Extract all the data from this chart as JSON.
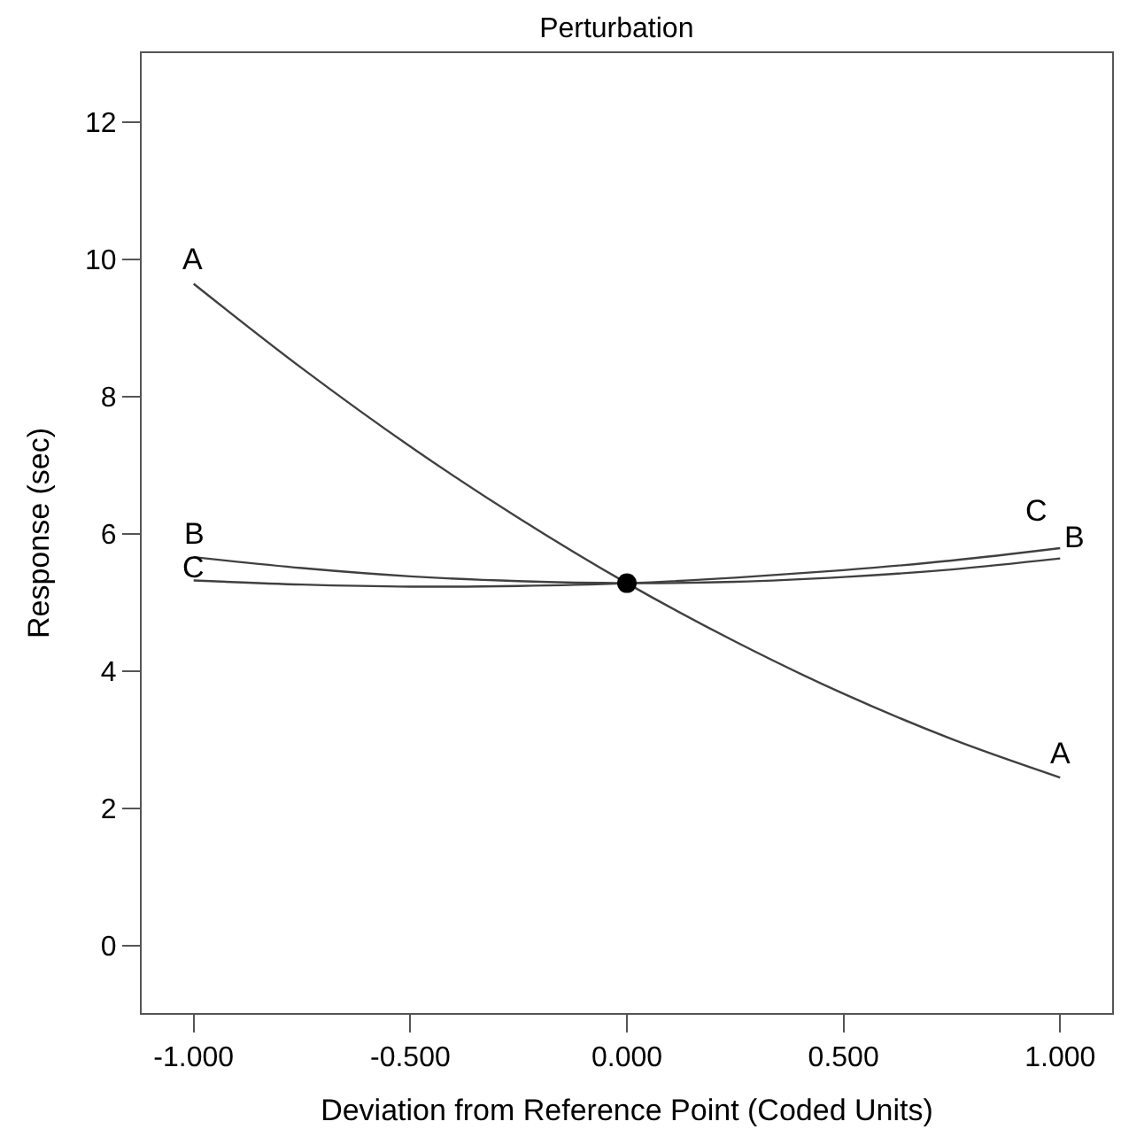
{
  "chart_data": {
    "type": "line",
    "title": "Perturbation",
    "xlabel": "Deviation from Reference Point (Coded Units)",
    "ylabel": "Response (sec)",
    "x": [
      -1,
      -0.75,
      -0.5,
      -0.25,
      0,
      0.25,
      0.5,
      0.75,
      1
    ],
    "series": [
      {
        "name": "A",
        "color": "#404040",
        "values": [
          9.64,
          8.41,
          7.27,
          6.23,
          5.28,
          4.43,
          3.67,
          3.01,
          2.45
        ]
      },
      {
        "name": "B",
        "color": "#404040",
        "values": [
          5.66,
          5.5,
          5.38,
          5.31,
          5.28,
          5.3,
          5.37,
          5.48,
          5.64
        ]
      },
      {
        "name": "C",
        "color": "#404040",
        "values": [
          5.32,
          5.26,
          5.23,
          5.24,
          5.28,
          5.36,
          5.47,
          5.61,
          5.79
        ]
      },
      {
        "type": "scatter",
        "x": [
          0
        ],
        "values": [
          5.28
        ],
        "color": "#000000",
        "marker": "circle"
      }
    ],
    "xlim": [
      -1.12,
      1.12
    ],
    "ylim": [
      -0.98,
      13.0
    ],
    "xticks": [
      {
        "value": -1,
        "label": "-1.000"
      },
      {
        "value": -0.5,
        "label": "-0.500"
      },
      {
        "value": 0,
        "label": "0.000"
      },
      {
        "value": 0.5,
        "label": "0.500"
      },
      {
        "value": 1,
        "label": "1.000"
      }
    ],
    "yticks": [
      0,
      2,
      4,
      6,
      8,
      10,
      12
    ],
    "legend": false,
    "marker": "none",
    "line_style": "solid"
  }
}
